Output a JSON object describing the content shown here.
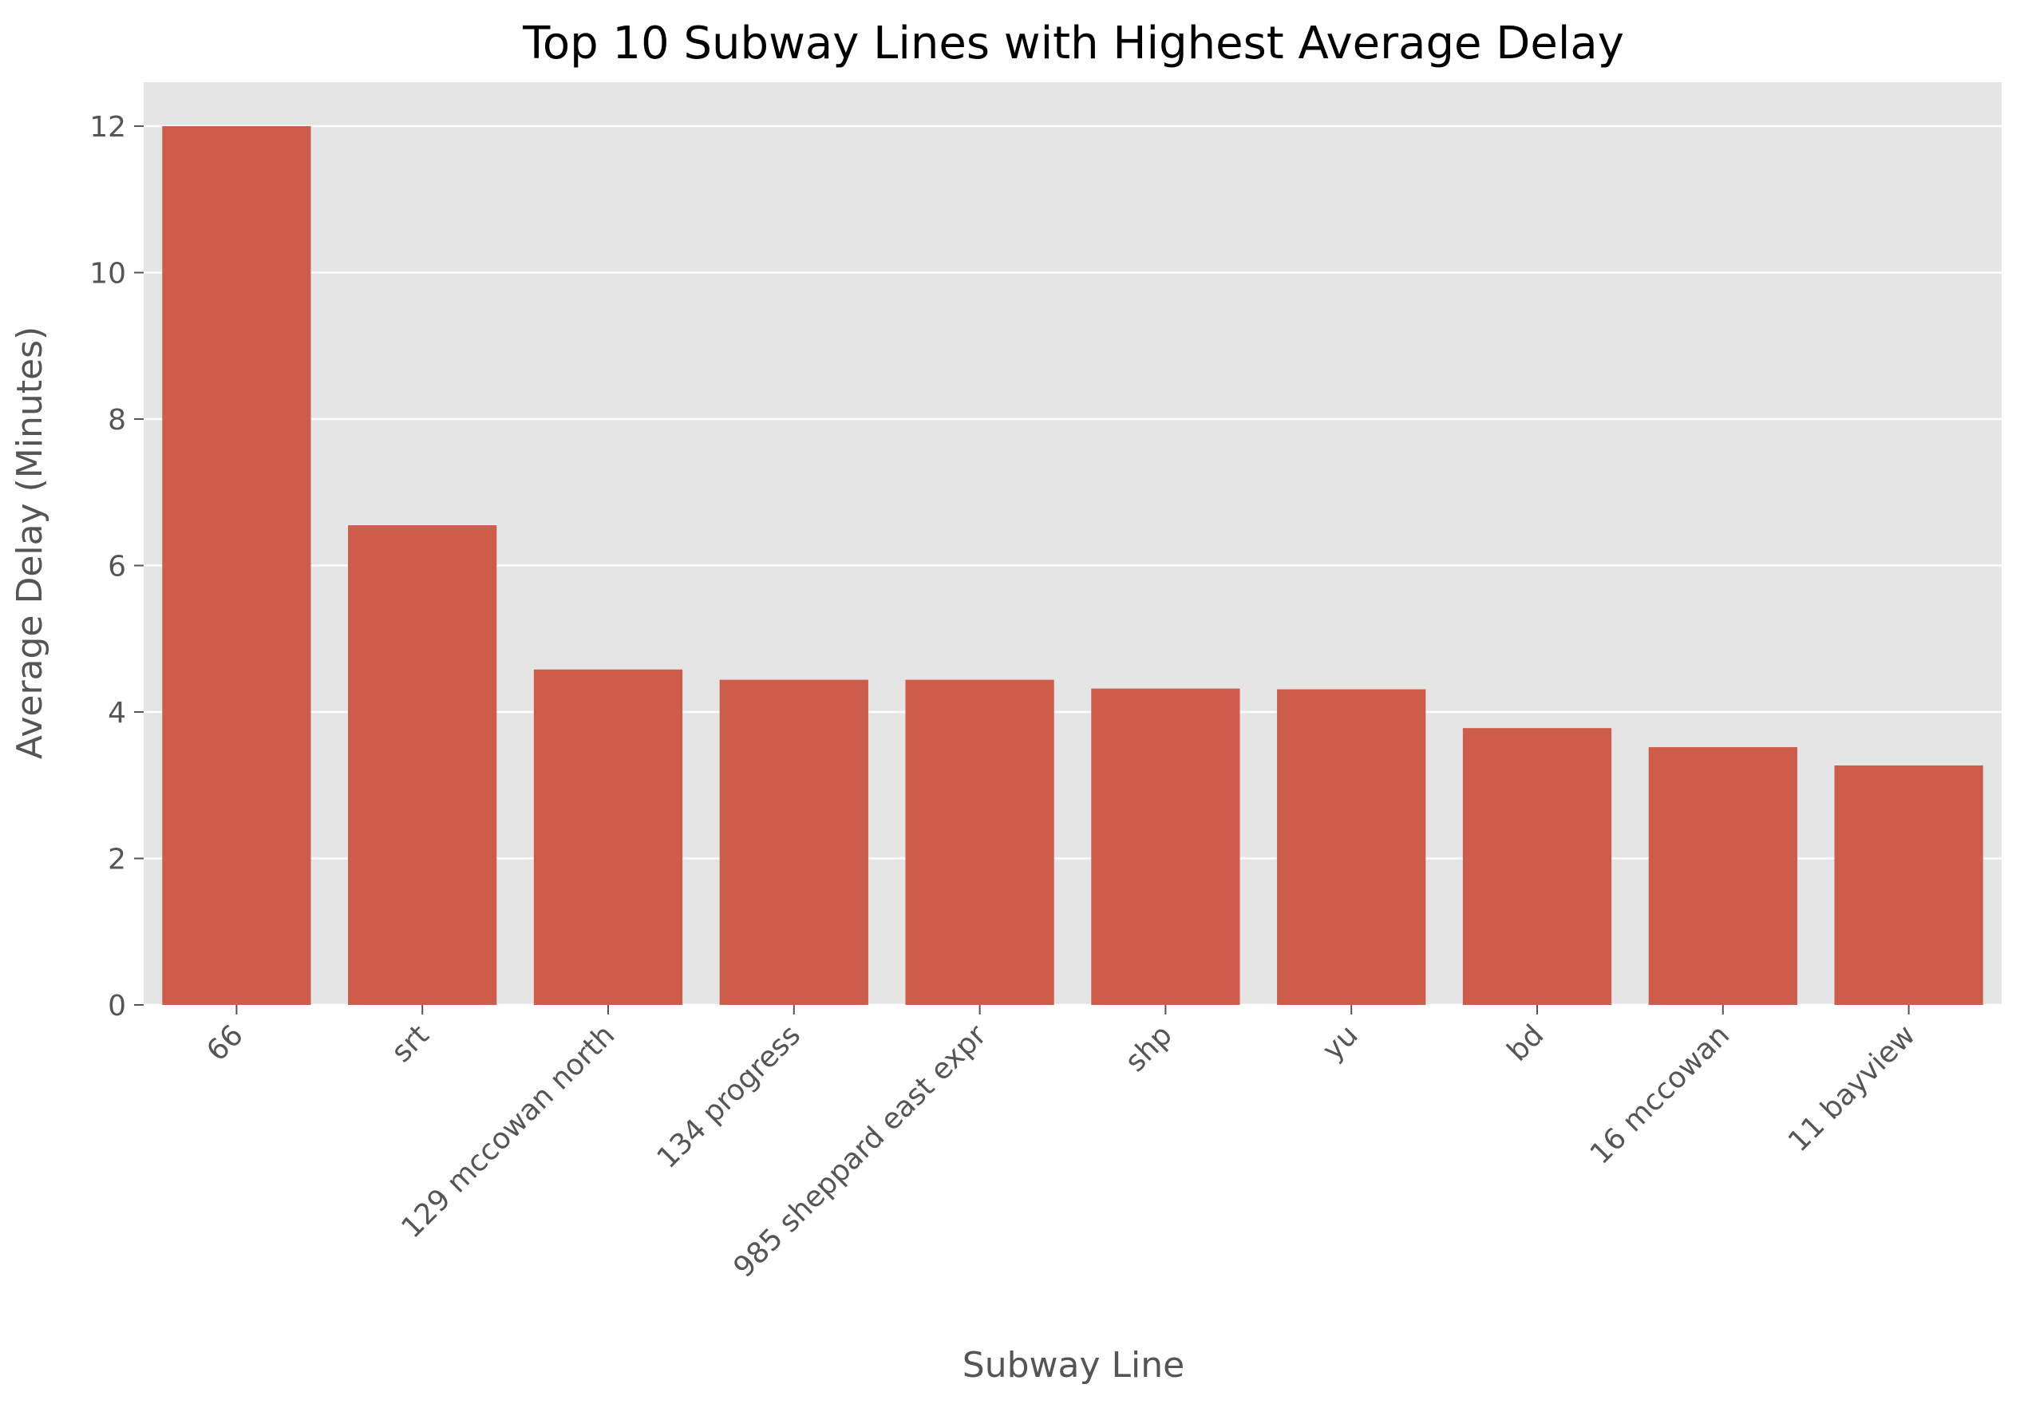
{
  "chart_data": {
    "type": "bar",
    "title": "Top 10 Subway Lines with Highest Average Delay",
    "xlabel": "Subway Line",
    "ylabel": "Average Delay (Minutes)",
    "categories": [
      "66",
      "srt",
      "129 mccowan north",
      "134 progress",
      "985 sheppard east expr",
      "shp",
      "yu",
      "bd",
      "16 mccowan",
      "11 bayview"
    ],
    "values": [
      12.0,
      6.55,
      4.58,
      4.44,
      4.44,
      4.32,
      4.31,
      3.78,
      3.52,
      3.27
    ],
    "ylim": [
      0,
      12.6
    ],
    "yticks": [
      0,
      2,
      4,
      6,
      8,
      10,
      12
    ],
    "grid": true,
    "bar_color": "#cd5c4b",
    "background_color": "#e5e5e5",
    "grid_color": "#ffffff"
  }
}
